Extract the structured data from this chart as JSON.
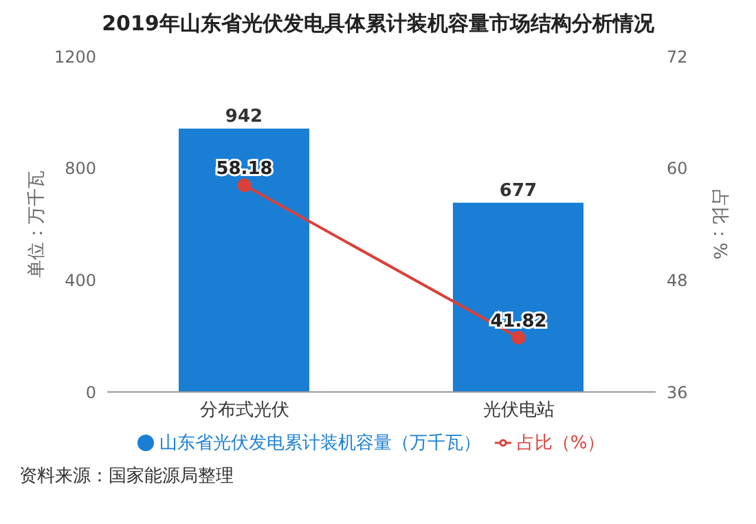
{
  "chart_data": {
    "type": "bar",
    "title": "2019年山东省光伏发电具体累计装机容量市场结构分析情况",
    "categories": [
      "分布式光伏",
      "光伏电站"
    ],
    "series": [
      {
        "name": "山东省光伏发电累计装机容量（万千瓦）",
        "color": "#1a7fd4",
        "values": [
          942,
          677
        ]
      },
      {
        "name": "占比（%）",
        "type": "line",
        "axis": "y2",
        "color": "#d9413a",
        "values": [
          58.18,
          41.82
        ]
      }
    ],
    "ylabel": "单位：万千瓦",
    "y2label": "占比：%",
    "ylim": [
      0,
      1200
    ],
    "yticks": [
      0,
      400,
      800,
      1200
    ],
    "y2lim": [
      36,
      72
    ],
    "y2ticks": [
      36,
      48,
      60,
      72
    ],
    "data_labels": true,
    "legend": "bottom",
    "marker": "circle",
    "grid": false,
    "annotations": [
      "资料来源：国家能源局整理"
    ]
  }
}
